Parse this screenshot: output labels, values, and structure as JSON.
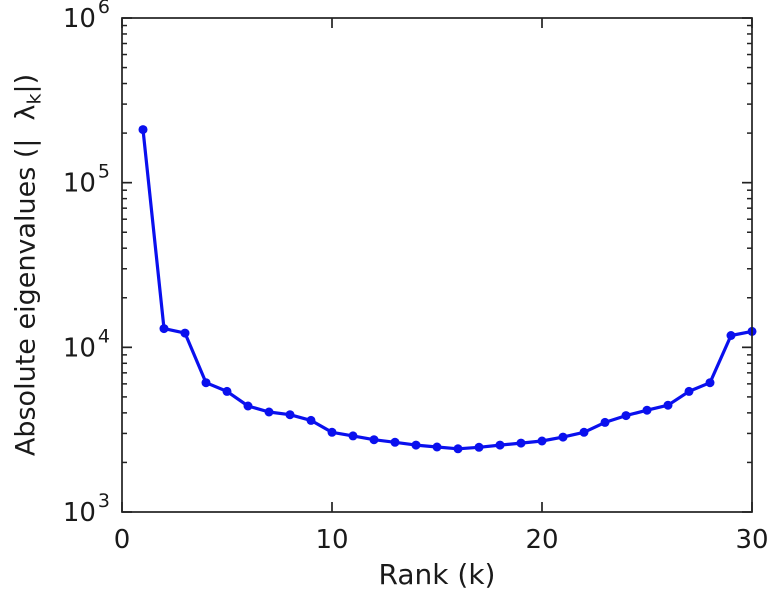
{
  "chart_data": {
    "type": "line",
    "series_name": "absolute-eigenvalues",
    "x": [
      1,
      2,
      3,
      4,
      5,
      6,
      7,
      8,
      9,
      10,
      11,
      12,
      13,
      14,
      15,
      16,
      17,
      18,
      19,
      20,
      21,
      22,
      23,
      24,
      25,
      26,
      27,
      28,
      29,
      30
    ],
    "values": [
      210000,
      13000,
      12200,
      6100,
      5400,
      4400,
      4050,
      3900,
      3600,
      3050,
      2900,
      2750,
      2650,
      2550,
      2480,
      2420,
      2470,
      2550,
      2620,
      2700,
      2850,
      3050,
      3500,
      3850,
      4150,
      4450,
      5400,
      6100,
      11800,
      12500
    ],
    "title": "",
    "xlabel": "Rank (k)",
    "ylabel": "Absolute eigenvalues (| λk|)",
    "ylabel_parts": {
      "prefix": "Absolute eigenvalues (|",
      "symbol": "λ",
      "subscript": "k",
      "suffix": "|)"
    },
    "xlim": [
      0,
      30
    ],
    "ylim": [
      1000,
      1000000
    ],
    "yscale": "log",
    "xscale": "linear",
    "xticks": [
      0,
      10,
      20,
      30
    ],
    "ytick_exponents": [
      3,
      4,
      5,
      6
    ],
    "ytick_base": "10",
    "line_color": "#0a10ee",
    "axis_color": "#222222",
    "marker": "circle",
    "grid": false,
    "legend": null
  }
}
